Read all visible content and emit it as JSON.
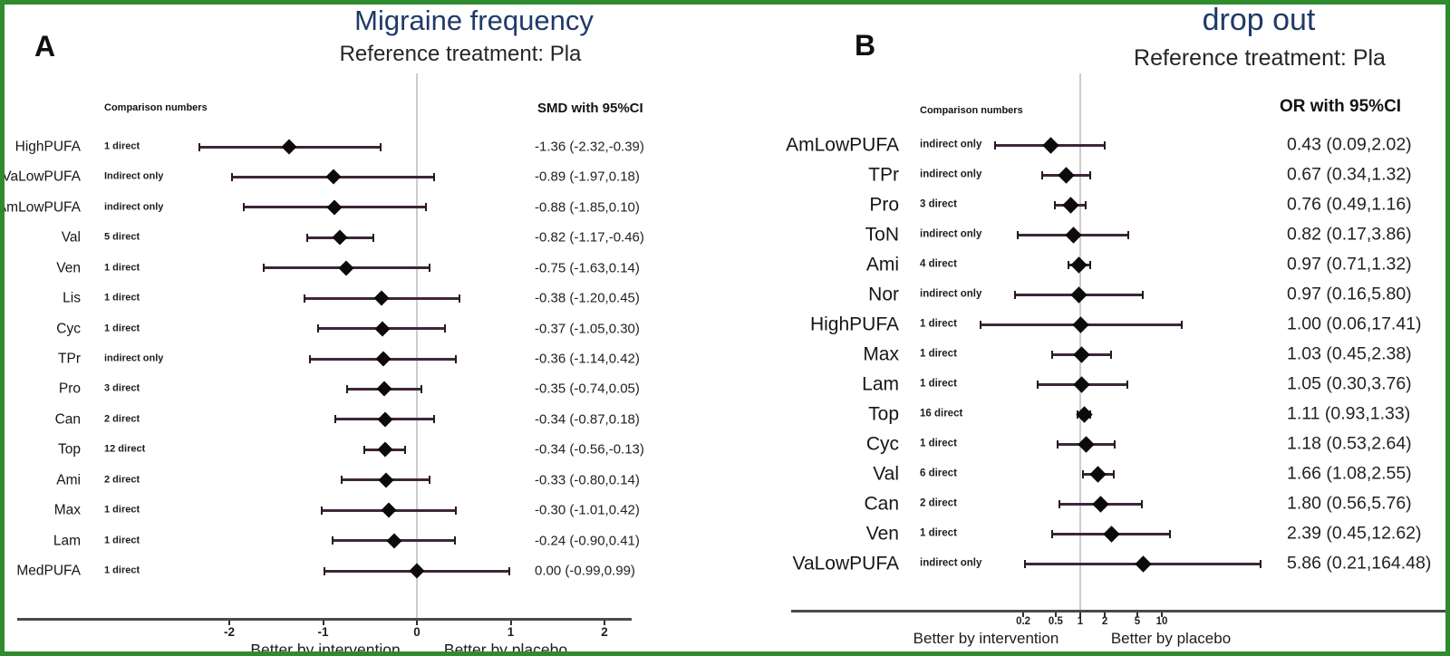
{
  "figure": {
    "border_color": "#2e8b2e",
    "background": "#ffffff"
  },
  "chart_data": [
    {
      "type": "forest",
      "panel_label": "A",
      "title": "Migraine frequency",
      "subtitle": "Reference treatment: Pla",
      "effect_measure": "SMD",
      "columns": {
        "comparison": "Comparison numbers",
        "effect": "SMD with 95%CI"
      },
      "axis": {
        "scale": "linear",
        "ticks": [
          -2,
          -1,
          0,
          1,
          2
        ],
        "tick_labels": [
          "-2",
          "-1",
          "0",
          "1",
          "2"
        ],
        "reference_value": 0,
        "xlim": [
          -2.5,
          2.5
        ]
      },
      "footer": {
        "left": "Better by intervention",
        "right": "Better by placebo"
      },
      "colors": {
        "title": "#1f3a68",
        "ci_line": "#40253a",
        "marker": "#0b0b0b",
        "reference_line": "#cccccc"
      },
      "rows": [
        {
          "treatment": "HighPUFA",
          "comparisons": "1 direct",
          "estimate": -1.36,
          "ci_low": -2.32,
          "ci_high": -0.39,
          "display": "-1.36 (-2.32,-0.39)"
        },
        {
          "treatment": "VaLowPUFA",
          "comparisons": "Indirect only",
          "estimate": -0.89,
          "ci_low": -1.97,
          "ci_high": 0.18,
          "display": "-0.89 (-1.97,0.18)"
        },
        {
          "treatment": "AmLowPUFA",
          "comparisons": "indirect only",
          "estimate": -0.88,
          "ci_low": -1.85,
          "ci_high": 0.1,
          "display": "-0.88 (-1.85,0.10)"
        },
        {
          "treatment": "Val",
          "comparisons": "5 direct",
          "estimate": -0.82,
          "ci_low": -1.17,
          "ci_high": -0.46,
          "display": "-0.82 (-1.17,-0.46)"
        },
        {
          "treatment": "Ven",
          "comparisons": "1 direct",
          "estimate": -0.75,
          "ci_low": -1.63,
          "ci_high": 0.14,
          "display": "-0.75 (-1.63,0.14)"
        },
        {
          "treatment": "Lis",
          "comparisons": "1 direct",
          "estimate": -0.38,
          "ci_low": -1.2,
          "ci_high": 0.45,
          "display": "-0.38 (-1.20,0.45)"
        },
        {
          "treatment": "Cyc",
          "comparisons": "1 direct",
          "estimate": -0.37,
          "ci_low": -1.05,
          "ci_high": 0.3,
          "display": "-0.37 (-1.05,0.30)"
        },
        {
          "treatment": "TPr",
          "comparisons": "indirect only",
          "estimate": -0.36,
          "ci_low": -1.14,
          "ci_high": 0.42,
          "display": "-0.36 (-1.14,0.42)"
        },
        {
          "treatment": "Pro",
          "comparisons": "3 direct",
          "estimate": -0.35,
          "ci_low": -0.74,
          "ci_high": 0.05,
          "display": "-0.35 (-0.74,0.05)"
        },
        {
          "treatment": "Can",
          "comparisons": "2 direct",
          "estimate": -0.34,
          "ci_low": -0.87,
          "ci_high": 0.18,
          "display": "-0.34 (-0.87,0.18)"
        },
        {
          "treatment": "Top",
          "comparisons": "12 direct",
          "estimate": -0.34,
          "ci_low": -0.56,
          "ci_high": -0.13,
          "display": "-0.34 (-0.56,-0.13)"
        },
        {
          "treatment": "Ami",
          "comparisons": "2 direct",
          "estimate": -0.33,
          "ci_low": -0.8,
          "ci_high": 0.14,
          "display": "-0.33 (-0.80,0.14)"
        },
        {
          "treatment": "Max",
          "comparisons": "1 direct",
          "estimate": -0.3,
          "ci_low": -1.01,
          "ci_high": 0.42,
          "display": "-0.30 (-1.01,0.42)"
        },
        {
          "treatment": "Lam",
          "comparisons": "1 direct",
          "estimate": -0.24,
          "ci_low": -0.9,
          "ci_high": 0.41,
          "display": "-0.24 (-0.90,0.41)"
        },
        {
          "treatment": "MedPUFA",
          "comparisons": "1 direct",
          "estimate": 0.0,
          "ci_low": -0.99,
          "ci_high": 0.99,
          "display": "0.00 (-0.99,0.99)"
        }
      ]
    },
    {
      "type": "forest",
      "panel_label": "B",
      "title": "drop out",
      "subtitle": "Reference treatment: Pla",
      "effect_measure": "OR",
      "columns": {
        "comparison": "Comparison numbers",
        "effect": "OR with 95%CI"
      },
      "axis": {
        "scale": "log",
        "ticks": [
          0.2,
          0.5,
          1,
          2,
          5,
          10
        ],
        "tick_labels": [
          "0.2",
          "0.5",
          "1",
          "2",
          "5",
          "10"
        ],
        "reference_value": 1,
        "xlim": [
          0.05,
          200
        ]
      },
      "footer": {
        "left": "Better by intervention",
        "right": "Better by placebo"
      },
      "colors": {
        "title": "#1f3a68",
        "ci_line": "#40253a",
        "marker": "#0b0b0b",
        "reference_line": "#cccccc"
      },
      "rows": [
        {
          "treatment": "AmLowPUFA",
          "comparisons": "indirect only",
          "estimate": 0.43,
          "ci_low": 0.09,
          "ci_high": 2.02,
          "display": "0.43 (0.09,2.02)"
        },
        {
          "treatment": "TPr",
          "comparisons": "indirect only",
          "estimate": 0.67,
          "ci_low": 0.34,
          "ci_high": 1.32,
          "display": "0.67 (0.34,1.32)"
        },
        {
          "treatment": "Pro",
          "comparisons": "3 direct",
          "estimate": 0.76,
          "ci_low": 0.49,
          "ci_high": 1.16,
          "display": "0.76 (0.49,1.16)"
        },
        {
          "treatment": "ToN",
          "comparisons": "indirect only",
          "estimate": 0.82,
          "ci_low": 0.17,
          "ci_high": 3.86,
          "display": "0.82 (0.17,3.86)"
        },
        {
          "treatment": "Ami",
          "comparisons": "4 direct",
          "estimate": 0.97,
          "ci_low": 0.71,
          "ci_high": 1.32,
          "display": "0.97 (0.71,1.32)"
        },
        {
          "treatment": "Nor",
          "comparisons": "indirect only",
          "estimate": 0.97,
          "ci_low": 0.16,
          "ci_high": 5.8,
          "display": "0.97 (0.16,5.80)"
        },
        {
          "treatment": "HighPUFA",
          "comparisons": "1 direct",
          "estimate": 1.0,
          "ci_low": 0.06,
          "ci_high": 17.41,
          "display": "1.00 (0.06,17.41)"
        },
        {
          "treatment": "Max",
          "comparisons": "1 direct",
          "estimate": 1.03,
          "ci_low": 0.45,
          "ci_high": 2.38,
          "display": "1.03 (0.45,2.38)"
        },
        {
          "treatment": "Lam",
          "comparisons": "1 direct",
          "estimate": 1.05,
          "ci_low": 0.3,
          "ci_high": 3.76,
          "display": "1.05 (0.30,3.76)"
        },
        {
          "treatment": "Top",
          "comparisons": "16 direct",
          "estimate": 1.11,
          "ci_low": 0.93,
          "ci_high": 1.33,
          "display": "1.11 (0.93,1.33)"
        },
        {
          "treatment": "Cyc",
          "comparisons": "1 direct",
          "estimate": 1.18,
          "ci_low": 0.53,
          "ci_high": 2.64,
          "display": "1.18 (0.53,2.64)"
        },
        {
          "treatment": "Val",
          "comparisons": "6 direct",
          "estimate": 1.66,
          "ci_low": 1.08,
          "ci_high": 2.55,
          "display": "1.66 (1.08,2.55)"
        },
        {
          "treatment": "Can",
          "comparisons": "2 direct",
          "estimate": 1.8,
          "ci_low": 0.56,
          "ci_high": 5.76,
          "display": "1.80 (0.56,5.76)"
        },
        {
          "treatment": "Ven",
          "comparisons": "1 direct",
          "estimate": 2.39,
          "ci_low": 0.45,
          "ci_high": 12.62,
          "display": "2.39 (0.45,12.62)"
        },
        {
          "treatment": "VaLowPUFA",
          "comparisons": "indirect only",
          "estimate": 5.86,
          "ci_low": 0.21,
          "ci_high": 164.48,
          "display": "5.86 (0.21,164.48)"
        }
      ]
    }
  ]
}
